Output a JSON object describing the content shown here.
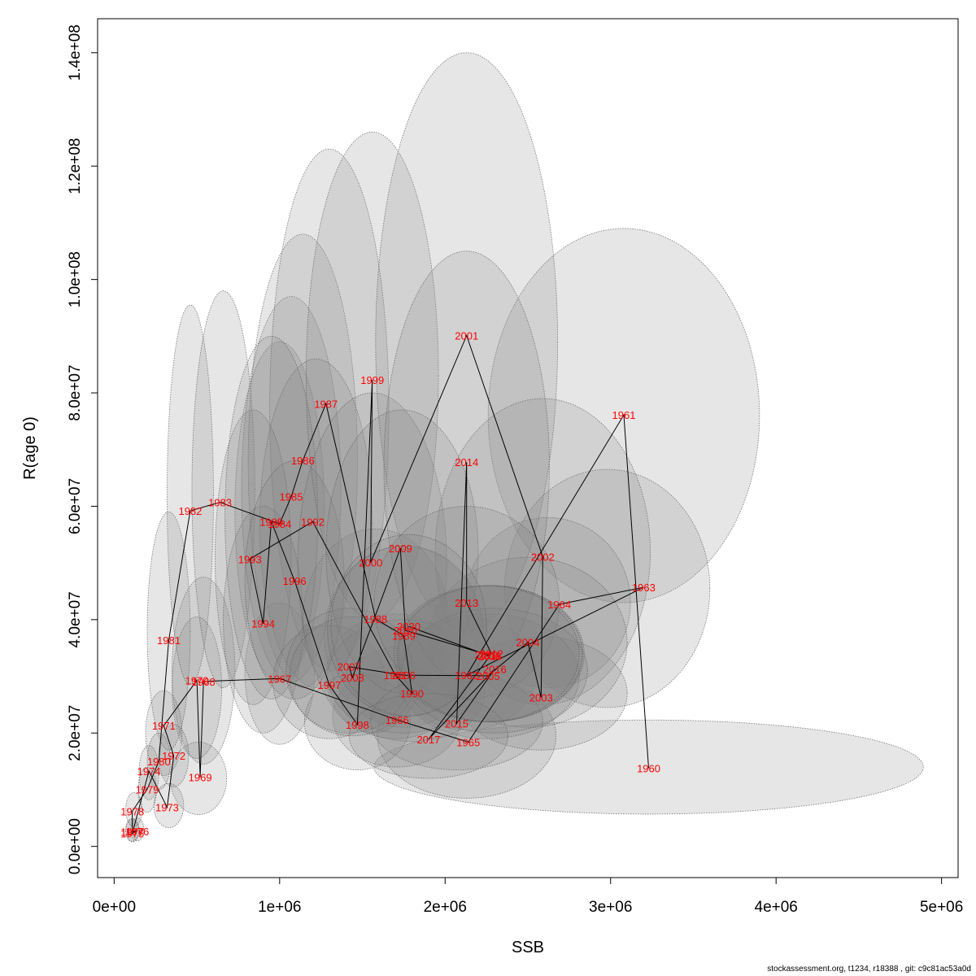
{
  "footer": "stockassessment.org, t1234, r18388 , git: c9c81ac53a0d",
  "chart_data": {
    "type": "scatter",
    "xlabel": "SSB",
    "ylabel": "R(age 0)",
    "xlim": [
      -100000,
      5100000
    ],
    "ylim": [
      -5500000,
      146000000
    ],
    "x_ticks": [
      0,
      1000000,
      2000000,
      3000000,
      4000000,
      5000000
    ],
    "x_tick_labels": [
      "0e+00",
      "1e+06",
      "2e+06",
      "3e+06",
      "4e+06",
      "5e+06"
    ],
    "y_ticks": [
      0,
      20000000,
      40000000,
      60000000,
      80000000,
      100000000,
      120000000,
      140000000
    ],
    "y_tick_labels": [
      "0.0e+00",
      "2.0e+07",
      "4.0e+07",
      "6.0e+07",
      "8.0e+07",
      "1.0e+08",
      "1.2e+08",
      "1.4e+08"
    ],
    "colors": {
      "point_label": "#ff0000",
      "trajectory": "#000000",
      "ellipse_fill": "#808080",
      "ellipse_stroke": "#555555"
    },
    "points": [
      {
        "year": "1960",
        "ssb": 3230000,
        "r": 13800000,
        "ell": [
          3230000,
          14000000,
          1660000,
          8300000
        ]
      },
      {
        "year": "1961",
        "ssb": 3080000,
        "r": 76100000,
        "ell": [
          3080000,
          76000000,
          820000,
          33000000
        ]
      },
      {
        "year": "1962",
        "ssb": 2130000,
        "r": 30200000,
        "ell": [
          2130000,
          30500000,
          420000,
          10000000
        ]
      },
      {
        "year": "1963",
        "ssb": 3200000,
        "r": 45700000,
        "ell": [
          2980000,
          45500000,
          620000,
          21000000
        ]
      },
      {
        "year": "1964",
        "ssb": 2690000,
        "r": 42700000,
        "ell": [
          2620000,
          43000000,
          500000,
          15000000
        ]
      },
      {
        "year": "1965",
        "ssb": 2140000,
        "r": 18400000,
        "ell": [
          2130000,
          19500000,
          540000,
          11000000
        ]
      },
      {
        "year": "1966",
        "ssb": 1710000,
        "r": 22300000,
        "ell": [
          1710000,
          23000000,
          390000,
          9000000
        ]
      },
      {
        "year": "1967",
        "ssb": 1000000,
        "r": 29600000,
        "ell": [
          1000000,
          30500000,
          210000,
          12500000
        ]
      },
      {
        "year": "1968",
        "ssb": 540000,
        "r": 29100000,
        "ell": [
          540000,
          31000000,
          190000,
          16500000
        ]
      },
      {
        "year": "1969",
        "ssb": 520000,
        "r": 12200000,
        "ell": [
          510000,
          12000000,
          170000,
          6400000
        ]
      },
      {
        "year": "1970",
        "ssb": 500000,
        "r": 29300000,
        "ell": [
          500000,
          28000000,
          150000,
          12500000
        ]
      },
      {
        "year": "1971",
        "ssb": 300000,
        "r": 21300000,
        "ell": [
          300000,
          20000000,
          110000,
          7500000
        ]
      },
      {
        "year": "1972",
        "ssb": 360000,
        "r": 16000000,
        "ell": [
          360000,
          16000000,
          90000,
          5500000
        ]
      },
      {
        "year": "1973",
        "ssb": 320000,
        "r": 6900000,
        "ell": [
          330000,
          7200000,
          90000,
          3900000
        ]
      },
      {
        "year": "1974",
        "ssb": 210000,
        "r": 13300000,
        "ell": [
          210000,
          13000000,
          60000,
          4800000
        ]
      },
      {
        "year": "1975",
        "ssb": 110000,
        "r": 2300000,
        "ell": [
          110000,
          2800000,
          40000,
          2000000
        ]
      },
      {
        "year": "1976",
        "ssb": 140000,
        "r": 2700000,
        "ell": [
          140000,
          3000000,
          40000,
          2000000
        ]
      },
      {
        "year": "1977",
        "ssb": 110000,
        "r": 2600000,
        "ell": [
          110000,
          2900000,
          40000,
          2000000
        ]
      },
      {
        "year": "1978",
        "ssb": 110000,
        "r": 6200000,
        "ell": [
          120000,
          6500000,
          50000,
          3000000
        ]
      },
      {
        "year": "1979",
        "ssb": 200000,
        "r": 10100000,
        "ell": [
          200000,
          10000000,
          55000,
          4000000
        ]
      },
      {
        "year": "1980",
        "ssb": 270000,
        "r": 15000000,
        "ell": [
          270000,
          15000000,
          70000,
          5000000
        ]
      },
      {
        "year": "1981",
        "ssb": 330000,
        "r": 36400000,
        "ell": [
          330000,
          38000000,
          130000,
          21000000
        ]
      },
      {
        "year": "1982",
        "ssb": 460000,
        "r": 59200000,
        "ell": [
          460000,
          62000000,
          140000,
          33500000
        ]
      },
      {
        "year": "1983",
        "ssb": 640000,
        "r": 60700000,
        "ell": [
          660000,
          63000000,
          190000,
          35000000
        ]
      },
      {
        "year": "1984",
        "ssb": 1000000,
        "r": 56900000,
        "ell": [
          1000000,
          59000000,
          270000,
          30000000
        ]
      },
      {
        "year": "1985",
        "ssb": 1070000,
        "r": 61700000,
        "ell": [
          1070000,
          63000000,
          300000,
          34000000
        ]
      },
      {
        "year": "1986",
        "ssb": 1140000,
        "r": 68100000,
        "ell": [
          1140000,
          68000000,
          330000,
          40000000
        ]
      },
      {
        "year": "1987",
        "ssb": 1280000,
        "r": 78100000,
        "ell": [
          1300000,
          77000000,
          360000,
          46000000
        ]
      },
      {
        "year": "1988",
        "ssb": 1580000,
        "r": 40100000,
        "ell": [
          1580000,
          40000000,
          440000,
          16000000
        ]
      },
      {
        "year": "1989",
        "ssb": 1750000,
        "r": 37200000,
        "ell": [
          1750000,
          37000000,
          480000,
          16000000
        ]
      },
      {
        "year": "1990",
        "ssb": 1800000,
        "r": 27000000,
        "ell": [
          1800000,
          27000000,
          440000,
          8500000
        ]
      },
      {
        "year": "1991",
        "ssb": 1700000,
        "r": 30200000,
        "ell": [
          1700000,
          30000000,
          420000,
          11000000
        ]
      },
      {
        "year": "1992",
        "ssb": 1200000,
        "r": 57300000,
        "ell": [
          1220000,
          57000000,
          340000,
          29000000
        ]
      },
      {
        "year": "1993",
        "ssb": 820000,
        "r": 50700000,
        "ell": [
          840000,
          51000000,
          230000,
          26000000
        ]
      },
      {
        "year": "1994",
        "ssb": 900000,
        "r": 39300000,
        "ell": [
          900000,
          40000000,
          240000,
          20000000
        ]
      },
      {
        "year": "1995",
        "ssb": 950000,
        "r": 57300000,
        "ell": [
          950000,
          58000000,
          280000,
          32000000
        ]
      },
      {
        "year": "1996",
        "ssb": 1090000,
        "r": 46900000,
        "ell": [
          1090000,
          47000000,
          300000,
          21000000
        ]
      },
      {
        "year": "1997",
        "ssb": 1300000,
        "r": 28500000,
        "ell": [
          1300000,
          29000000,
          340000,
          10000000
        ]
      },
      {
        "year": "1998",
        "ssb": 1470000,
        "r": 21500000,
        "ell": [
          1470000,
          22000000,
          320000,
          8500000
        ]
      },
      {
        "year": "1999",
        "ssb": 1560000,
        "r": 82300000,
        "ell": [
          1560000,
          83000000,
          400000,
          43000000
        ]
      },
      {
        "year": "2000",
        "ssb": 1550000,
        "r": 50100000,
        "ell": [
          1560000,
          50000000,
          450000,
          30000000
        ]
      },
      {
        "year": "2001",
        "ssb": 2130000,
        "r": 90100000,
        "ell": [
          2130000,
          89000000,
          550000,
          51000000
        ]
      },
      {
        "year": "2002",
        "ssb": 2590000,
        "r": 51100000,
        "ell": [
          2590000,
          52000000,
          650000,
          27000000
        ]
      },
      {
        "year": "2003",
        "ssb": 2580000,
        "r": 26300000,
        "ell": [
          2580000,
          27000000,
          520000,
          10000000
        ]
      },
      {
        "year": "2004",
        "ssb": 2500000,
        "r": 36000000,
        "ell": [
          2500000,
          36000000,
          600000,
          15000000
        ]
      },
      {
        "year": "2005",
        "ssb": 2260000,
        "r": 30100000,
        "ell": [
          2260000,
          30000000,
          550000,
          11000000
        ]
      },
      {
        "year": "2006",
        "ssb": 1750000,
        "r": 30200000,
        "ell": [
          1750000,
          30000000,
          460000,
          10000000
        ]
      },
      {
        "year": "2007",
        "ssb": 1420000,
        "r": 31700000,
        "ell": [
          1420000,
          31000000,
          380000,
          11000000
        ]
      },
      {
        "year": "2008",
        "ssb": 1440000,
        "r": 29800000,
        "ell": [
          1440000,
          30000000,
          380000,
          10500000
        ]
      },
      {
        "year": "2009",
        "ssb": 1730000,
        "r": 52600000,
        "ell": [
          1740000,
          52000000,
          460000,
          25000000
        ]
      },
      {
        "year": "2010",
        "ssb": 1760000,
        "r": 38100000,
        "ell": [
          1760000,
          38000000,
          470000,
          15000000
        ]
      },
      {
        "year": "2011",
        "ssb": 2270000,
        "r": 33700000,
        "ell": [
          2270000,
          34000000,
          560000,
          12000000
        ]
      },
      {
        "year": "2012",
        "ssb": 2280000,
        "r": 34000000,
        "ell": [
          2280000,
          34000000,
          560000,
          12000000
        ]
      },
      {
        "year": "2013",
        "ssb": 2130000,
        "r": 43000000,
        "ell": [
          2130000,
          43000000,
          560000,
          17000000
        ]
      },
      {
        "year": "2014",
        "ssb": 2130000,
        "r": 67800000,
        "ell": [
          2130000,
          67000000,
          500000,
          38000000
        ]
      },
      {
        "year": "2015",
        "ssb": 2070000,
        "r": 21700000,
        "ell": [
          2070000,
          22000000,
          520000,
          8500000
        ]
      },
      {
        "year": "2016",
        "ssb": 2300000,
        "r": 31300000,
        "ell": [
          2300000,
          31000000,
          560000,
          11000000
        ]
      },
      {
        "year": "2017",
        "ssb": 1900000,
        "r": 18900000,
        "ell": [
          1900000,
          19500000,
          480000,
          7500000
        ]
      },
      {
        "year": "2018",
        "ssb": 2270000,
        "r": 33600000,
        "ell": [
          2270000,
          34000000,
          560000,
          12000000
        ]
      },
      {
        "year": "2019",
        "ssb": 2250000,
        "r": 33800000,
        "ell": [
          2250000,
          34000000,
          560000,
          12000000
        ]
      },
      {
        "year": "2020",
        "ssb": 1780000,
        "r": 38800000,
        "ell": [
          1780000,
          39000000,
          470000,
          16000000
        ]
      }
    ],
    "path_order": [
      "1960",
      "1961",
      "1962",
      "1963",
      "1964",
      "1965",
      "1966",
      "1967",
      "1968",
      "1969",
      "1970",
      "1971",
      "1972",
      "1973",
      "1974",
      "1975",
      "1976",
      "1977",
      "1978",
      "1979",
      "1980",
      "1981",
      "1982",
      "1983",
      "1984",
      "1985",
      "1986",
      "1987",
      "1988",
      "1989",
      "1990",
      "1991",
      "1992",
      "1993",
      "1994",
      "1995",
      "1996",
      "1997",
      "1998",
      "1999",
      "2000",
      "2001",
      "2002",
      "2003",
      "2004",
      "2005",
      "2006",
      "2007",
      "2008",
      "2009",
      "2010",
      "2011",
      "2012",
      "2013",
      "2014",
      "2015",
      "2016",
      "2017",
      "2018",
      "2019",
      "2020"
    ]
  }
}
